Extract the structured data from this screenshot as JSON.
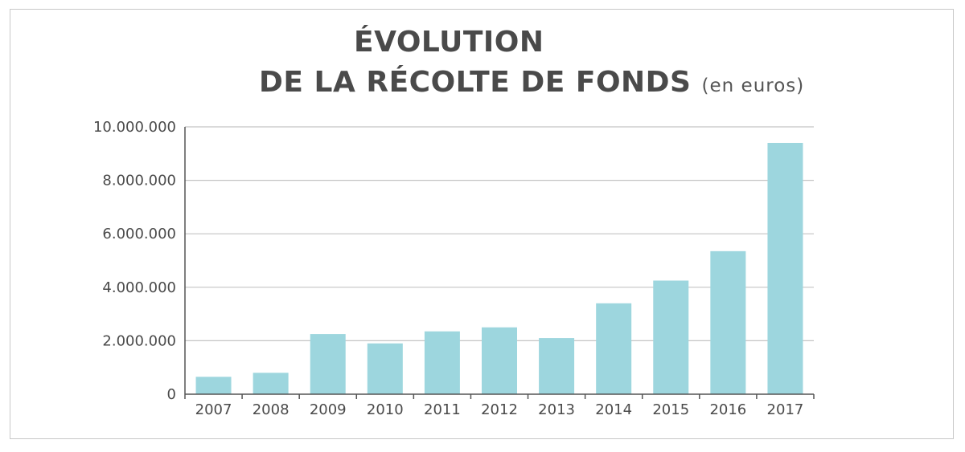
{
  "header": {
    "title_line1": "ÉVOLUTION",
    "title_line2": "DE LA RÉCOLTE DE FONDS",
    "unit": "(en euros)"
  },
  "chart_data": {
    "type": "bar",
    "title": "ÉVOLUTION DE LA RÉCOLTE DE FONDS",
    "subtitle": "(en euros)",
    "xlabel": "",
    "ylabel": "",
    "categories": [
      "2007",
      "2008",
      "2009",
      "2010",
      "2011",
      "2012",
      "2013",
      "2014",
      "2015",
      "2016",
      "2017"
    ],
    "values": [
      650000,
      800000,
      2250000,
      1900000,
      2350000,
      2500000,
      2100000,
      3400000,
      4250000,
      5350000,
      9400000
    ],
    "ylim": [
      0,
      10000000
    ],
    "yticks": [
      0,
      2000000,
      4000000,
      6000000,
      8000000,
      10000000
    ],
    "ytick_labels": [
      "0",
      "2.000.000",
      "4.000.000",
      "6.000.000",
      "8.000.000",
      "10.000.000"
    ],
    "grid": true,
    "legend": "none",
    "colors": {
      "bar": "#9dd6de",
      "grid": "#c4c4c4",
      "axis": "#555555",
      "text": "#4a4a4a"
    }
  }
}
